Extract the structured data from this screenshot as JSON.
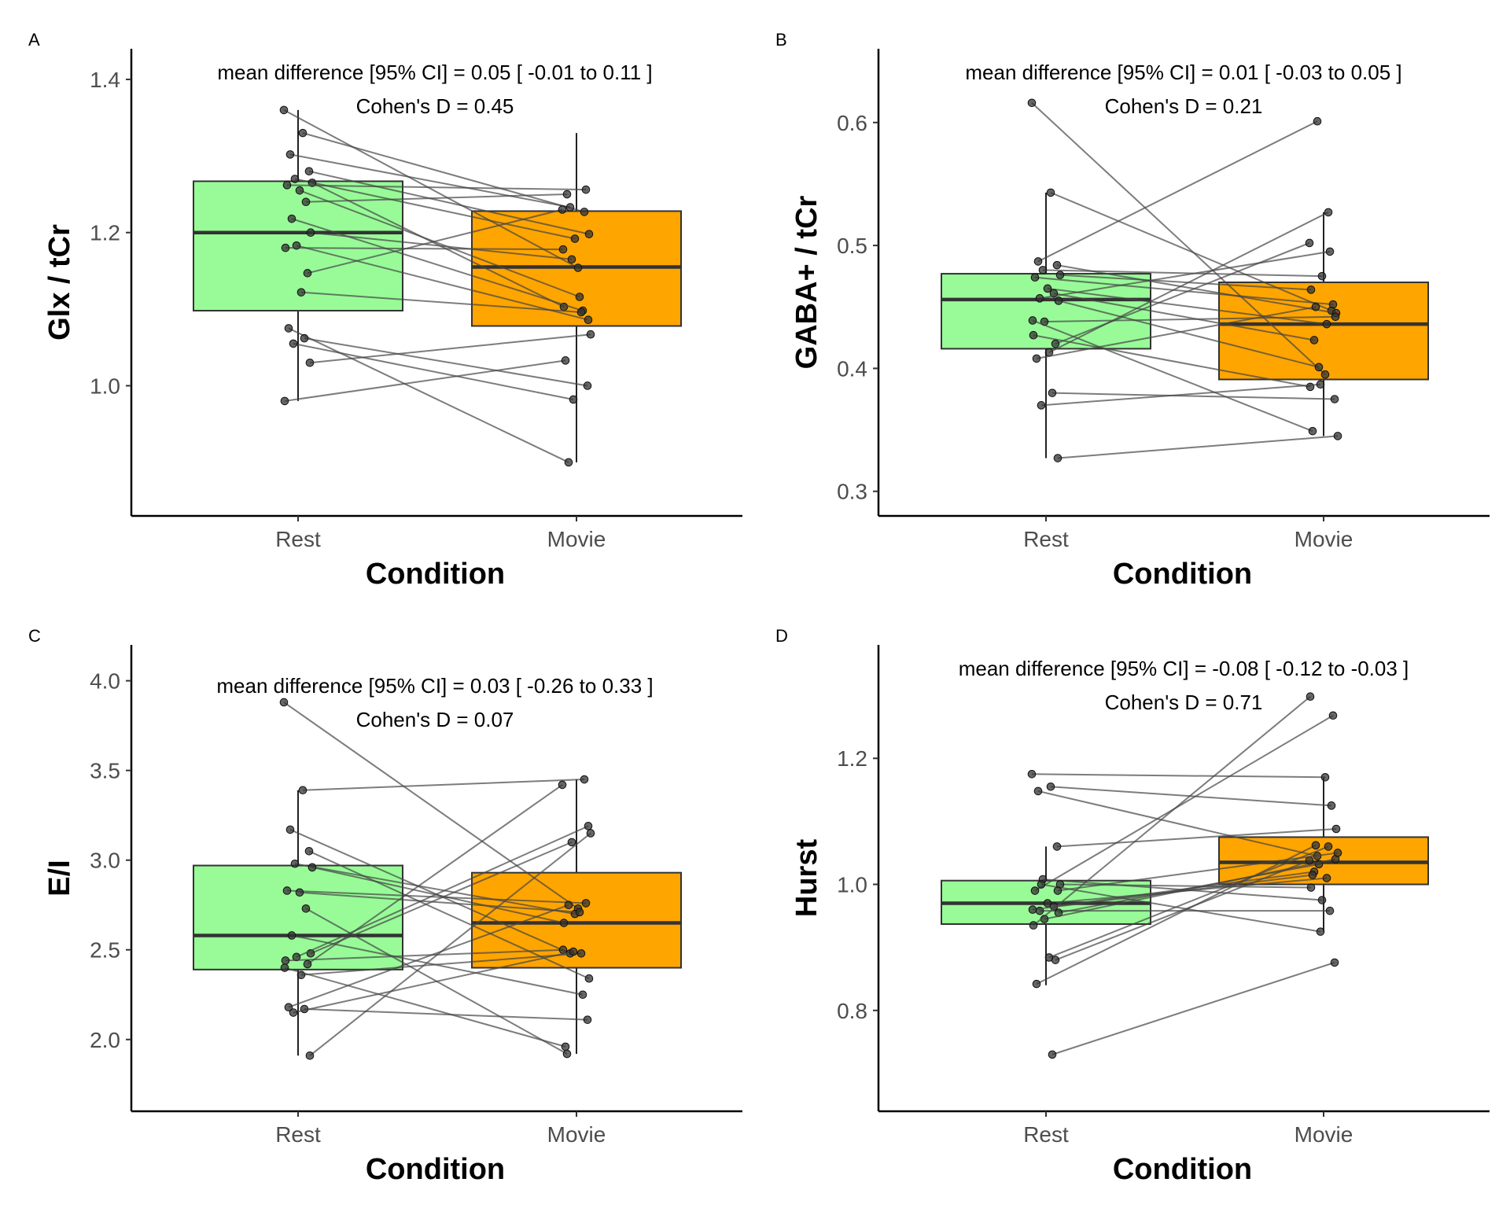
{
  "chart_data": [
    {
      "type": "box",
      "panel_label": "A",
      "annotation_line1": "mean difference [95% CI] =  0.05 [ -0.01  to  0.11 ]",
      "annotation_line2": "Cohen's D =  0.45",
      "xlabel": "Condition",
      "ylabel": "Glx / tCr",
      "categories": [
        "Rest",
        "Movie"
      ],
      "ylim": [
        0.83,
        1.44
      ],
      "yticks": [
        1.0,
        1.2,
        1.4
      ],
      "ytick_labels": [
        "1.0",
        "1.2",
        "1.4"
      ],
      "boxes": [
        {
          "category": "Rest",
          "color": "#98fb98",
          "q1": 1.098,
          "median": 1.2,
          "q3": 1.267,
          "whisker_low": 0.98,
          "whisker_high": 1.36
        },
        {
          "category": "Movie",
          "color": "#ffa500",
          "q1": 1.078,
          "median": 1.155,
          "q3": 1.228,
          "whisker_low": 0.9,
          "whisker_high": 1.33
        }
      ],
      "pairs": [
        [
          1.36,
          1.154
        ],
        [
          1.33,
          1.227
        ],
        [
          1.302,
          1.233
        ],
        [
          1.28,
          1.198
        ],
        [
          1.27,
          1.192
        ],
        [
          1.265,
          1.103
        ],
        [
          1.262,
          1.256
        ],
        [
          1.255,
          1.116
        ],
        [
          1.24,
          1.25
        ],
        [
          1.218,
          1.098
        ],
        [
          1.2,
          1.165
        ],
        [
          1.183,
          1.086
        ],
        [
          1.18,
          1.178
        ],
        [
          1.147,
          1.23
        ],
        [
          1.122,
          1.096
        ],
        [
          1.075,
          0.9
        ],
        [
          1.062,
          1.0
        ],
        [
          1.055,
          0.982
        ],
        [
          1.03,
          1.067
        ],
        [
          0.98,
          1.033
        ]
      ]
    },
    {
      "type": "box",
      "panel_label": "B",
      "annotation_line1": "mean difference [95% CI] =  0.01 [ -0.03  to  0.05 ]",
      "annotation_line2": "Cohen's D =  0.21",
      "xlabel": "Condition",
      "ylabel": "GABA+ / tCr",
      "categories": [
        "Rest",
        "Movie"
      ],
      "ylim": [
        0.28,
        0.66
      ],
      "yticks": [
        0.3,
        0.4,
        0.5,
        0.6
      ],
      "ytick_labels": [
        "0.3",
        "0.4",
        "0.5",
        "0.6"
      ],
      "boxes": [
        {
          "category": "Rest",
          "color": "#98fb98",
          "q1": 0.416,
          "median": 0.456,
          "q3": 0.477,
          "whisker_low": 0.327,
          "whisker_high": 0.543
        },
        {
          "category": "Movie",
          "color": "#ffa500",
          "q1": 0.391,
          "median": 0.436,
          "q3": 0.47,
          "whisker_low": 0.345,
          "whisker_high": 0.527
        }
      ],
      "pairs": [
        [
          0.616,
          0.395
        ],
        [
          0.543,
          0.447
        ],
        [
          0.487,
          0.601
        ],
        [
          0.484,
          0.445
        ],
        [
          0.48,
          0.475
        ],
        [
          0.476,
          0.464
        ],
        [
          0.474,
          0.452
        ],
        [
          0.465,
          0.436
        ],
        [
          0.461,
          0.423
        ],
        [
          0.457,
          0.495
        ],
        [
          0.455,
          0.401
        ],
        [
          0.438,
          0.442
        ],
        [
          0.427,
          0.385
        ],
        [
          0.42,
          0.502
        ],
        [
          0.413,
          0.527
        ],
        [
          0.408,
          0.45
        ],
        [
          0.38,
          0.375
        ],
        [
          0.37,
          0.387
        ],
        [
          0.327,
          0.345
        ],
        [
          0.439,
          0.349
        ]
      ]
    },
    {
      "type": "box",
      "panel_label": "C",
      "annotation_line1": "mean difference [95% CI] =  0.03 [ -0.26  to  0.33 ]",
      "annotation_line2": "Cohen's D =  0.07",
      "xlabel": "Condition",
      "ylabel": "E/I",
      "categories": [
        "Rest",
        "Movie"
      ],
      "ylim": [
        1.6,
        4.2
      ],
      "yticks": [
        2.0,
        2.5,
        3.0,
        3.5,
        4.0
      ],
      "ytick_labels": [
        "2.0",
        "2.5",
        "3.0",
        "3.5",
        "4.0"
      ],
      "boxes": [
        {
          "category": "Rest",
          "color": "#98fb98",
          "q1": 2.39,
          "median": 2.58,
          "q3": 2.97,
          "whisker_low": 1.91,
          "whisker_high": 3.39
        },
        {
          "category": "Movie",
          "color": "#ffa500",
          "q1": 2.4,
          "median": 2.65,
          "q3": 2.93,
          "whisker_low": 1.92,
          "whisker_high": 3.45
        }
      ],
      "pairs": [
        [
          3.88,
          2.73
        ],
        [
          3.39,
          3.45
        ],
        [
          3.17,
          2.48
        ],
        [
          3.05,
          2.34
        ],
        [
          2.98,
          2.7
        ],
        [
          2.96,
          2.65
        ],
        [
          2.83,
          2.76
        ],
        [
          2.82,
          2.71
        ],
        [
          2.73,
          1.92
        ],
        [
          2.58,
          2.25
        ],
        [
          2.48,
          3.1
        ],
        [
          2.46,
          3.19
        ],
        [
          2.44,
          2.5
        ],
        [
          2.42,
          3.42
        ],
        [
          2.36,
          2.48
        ],
        [
          2.18,
          2.75
        ],
        [
          2.17,
          2.11
        ],
        [
          2.15,
          2.49
        ],
        [
          1.91,
          3.15
        ],
        [
          2.4,
          1.96
        ]
      ]
    },
    {
      "type": "box",
      "panel_label": "D",
      "annotation_line1": "mean difference [95% CI] =  -0.08 [ -0.12  to  -0.03 ]",
      "annotation_line2": "Cohen's D =  0.71",
      "xlabel": "Condition",
      "ylabel": "Hurst",
      "categories": [
        "Rest",
        "Movie"
      ],
      "ylim": [
        0.64,
        1.38
      ],
      "yticks": [
        0.8,
        1.0,
        1.2
      ],
      "ytick_labels": [
        "0.8",
        "1.0",
        "1.2"
      ],
      "boxes": [
        {
          "category": "Rest",
          "color": "#98fb98",
          "q1": 0.937,
          "median": 0.97,
          "q3": 1.006,
          "whisker_low": 0.84,
          "whisker_high": 1.06
        },
        {
          "category": "Movie",
          "color": "#ffa500",
          "q1": 1.0,
          "median": 1.035,
          "q3": 1.075,
          "whisker_low": 0.925,
          "whisker_high": 1.17
        }
      ],
      "pairs": [
        [
          1.175,
          1.17
        ],
        [
          1.155,
          1.125
        ],
        [
          1.148,
          1.045
        ],
        [
          1.06,
          1.088
        ],
        [
          1.008,
          0.975
        ],
        [
          1.0,
          0.995
        ],
        [
          0.99,
          1.268
        ],
        [
          0.97,
          1.01
        ],
        [
          0.965,
          1.02
        ],
        [
          0.958,
          0.958
        ],
        [
          0.955,
          1.032
        ],
        [
          0.945,
          1.04
        ],
        [
          0.935,
          1.298
        ],
        [
          0.88,
          1.038
        ],
        [
          0.884,
          1.06
        ],
        [
          0.842,
          1.062
        ],
        [
          0.73,
          0.876
        ],
        [
          1.0,
          0.925
        ],
        [
          0.99,
          1.05
        ],
        [
          0.96,
          1.015
        ]
      ]
    }
  ]
}
